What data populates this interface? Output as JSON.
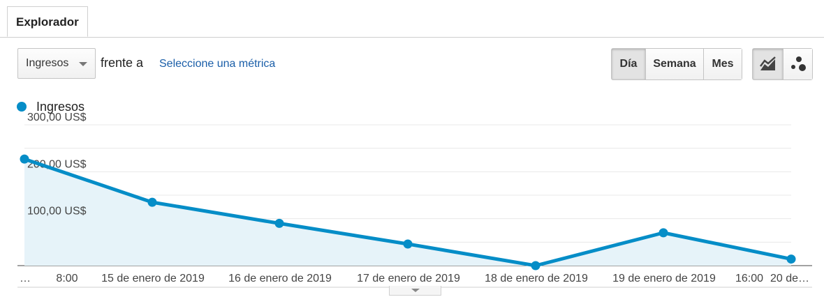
{
  "tab": {
    "label": "Explorador"
  },
  "toolbar": {
    "metric_selected": "Ingresos",
    "versus_text": "frente a",
    "select_metric_link": "Seleccione una métrica",
    "period_buttons": [
      "Día",
      "Semana",
      "Mes"
    ],
    "active_period": "Día",
    "chart_type_icons": [
      "line-chart-icon",
      "motion-chart-icon"
    ],
    "active_chart_type": "line-chart-icon"
  },
  "colors": {
    "series": "#058dc7",
    "fill": "#e6f3f9",
    "link": "#1a5ea8"
  },
  "chart_data": {
    "type": "area",
    "legend": [
      "Ingresos"
    ],
    "y_tick_labels": [
      "300,00 US$",
      "200,00 US$",
      "100,00 US$"
    ],
    "y_ticks": [
      300,
      200,
      100
    ],
    "ylim": [
      0,
      300
    ],
    "x_tick_labels": [
      "…",
      "8:00",
      "15 de enero de 2019",
      "16 de enero de 2019",
      "17 de enero de 2019",
      "18 de enero de 2019",
      "19 de enero de 2019",
      "16:00",
      "20 de…"
    ],
    "series": [
      {
        "name": "Ingresos",
        "values": [
          227,
          135,
          90,
          46,
          0,
          70,
          14
        ]
      }
    ],
    "grid": true,
    "legend_position": "top-left"
  }
}
